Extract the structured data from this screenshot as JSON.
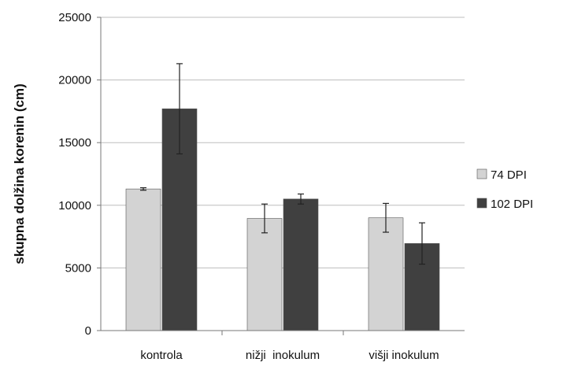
{
  "chart_data": {
    "type": "bar",
    "title": "",
    "xlabel": "",
    "ylabel": "skupna dolžina korenin (cm)",
    "ylim": [
      0,
      25000
    ],
    "yticks": [
      0,
      5000,
      10000,
      15000,
      20000,
      25000
    ],
    "grid": true,
    "legend_position": "right",
    "categories": [
      "kontrola",
      "nižji  inokulum",
      "višji inokulum"
    ],
    "series": [
      {
        "name": "74 DPI",
        "color": "#d3d3d3",
        "values": [
          11300,
          8950,
          9000
        ],
        "errors": [
          100,
          1150,
          1150
        ]
      },
      {
        "name": "102 DPI",
        "color": "#404040",
        "values": [
          17700,
          10500,
          6950
        ],
        "errors": [
          3600,
          400,
          1650
        ]
      }
    ]
  }
}
